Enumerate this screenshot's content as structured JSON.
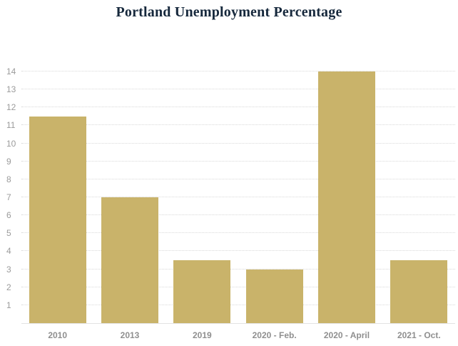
{
  "title": "Portland Unemployment Percentage",
  "colors": {
    "bar": "#c9b36a",
    "title": "#16283c",
    "axis_labels": "#9b9b9b",
    "x_labels": "#8f8f8f",
    "gridline": "#d9d9d9"
  },
  "chart_data": {
    "type": "bar",
    "title": "Portland Unemployment Percentage",
    "categories": [
      "2010",
      "2013",
      "2019",
      "2020 - Feb.",
      "2020 - April",
      "2021 - Oct."
    ],
    "values": [
      11.5,
      7,
      3.5,
      3,
      14,
      3.5
    ],
    "xlabel": "",
    "ylabel": "",
    "ylim": [
      0,
      14
    ],
    "yticks": [
      1,
      2,
      3,
      4,
      5,
      6,
      7,
      8,
      9,
      10,
      11,
      12,
      13,
      14
    ],
    "grid": true,
    "grid_style": "dotted-horizontal",
    "legend": false,
    "bar_color": "#c9b36a",
    "background": "#ffffff"
  }
}
